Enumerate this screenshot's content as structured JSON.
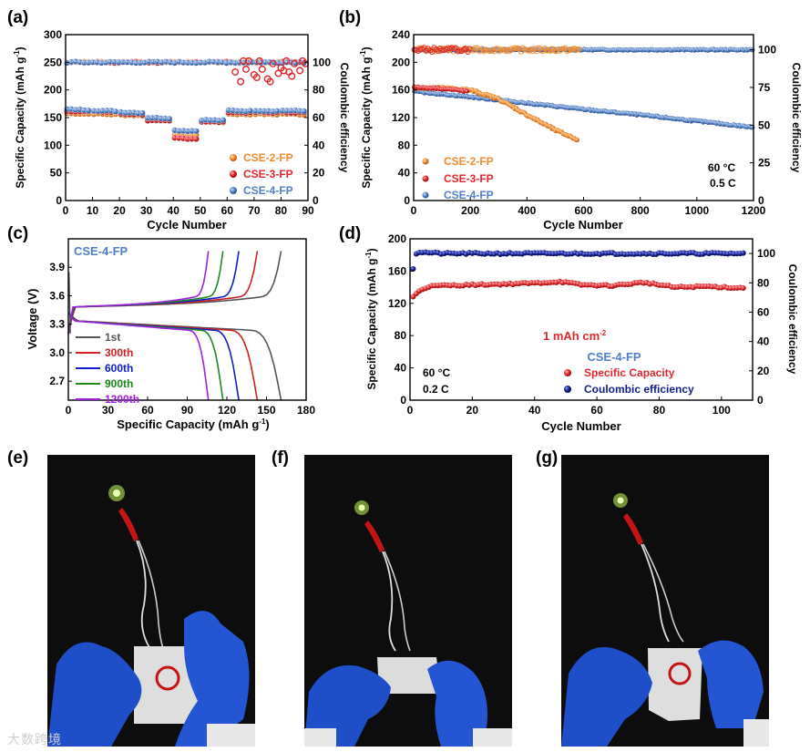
{
  "colors": {
    "orange": "#f08a2c",
    "red": "#e0262a",
    "blue": "#4f7fc4",
    "navy": "#14208c",
    "gray": "#555555",
    "darkred": "#d02020",
    "darkblue": "#1020c8",
    "green": "#1a8a1a",
    "purple": "#a020e0"
  },
  "panels": {
    "a": "(a)",
    "b": "(b)",
    "c": "(c)",
    "d": "(d)",
    "e": "(e)",
    "f": "(f)",
    "g": "(g)"
  },
  "watermark": "大数跨境",
  "chart_data": [
    {
      "id": "a",
      "type": "scatter",
      "title": "",
      "xlabel": "Cycle Number",
      "ylabel": "Specific Capacity (mAh g-1)",
      "ylabel_right": "Coulombic efficiency",
      "xlim": [
        0,
        90
      ],
      "ylim": [
        0,
        300
      ],
      "ylim_right": [
        0,
        120
      ],
      "xticks": [
        0,
        10,
        20,
        30,
        40,
        50,
        60,
        70,
        80,
        90
      ],
      "yticks": [
        0,
        50,
        100,
        150,
        200,
        250,
        300
      ],
      "yticks_right": [
        0,
        20,
        40,
        60,
        80,
        100
      ],
      "legend": [
        "CSE-2-FP",
        "CSE-3-FP",
        "CSE-4-FP"
      ],
      "legend_position": "lower-right",
      "series": [
        {
          "name": "CSE-2-FP capacity",
          "segments": [
            [
              0,
              10,
              158
            ],
            [
              10,
              20,
              157
            ],
            [
              20,
              30,
              155
            ],
            [
              30,
              40,
              146
            ],
            [
              40,
              50,
              120
            ],
            [
              50,
              60,
              143
            ],
            [
              60,
              70,
              157
            ],
            [
              70,
              80,
              157
            ],
            [
              80,
              90,
              157
            ]
          ]
        },
        {
          "name": "CSE-3-FP capacity",
          "segments": [
            [
              0,
              10,
              162
            ],
            [
              10,
              20,
              161
            ],
            [
              20,
              30,
              157
            ],
            [
              30,
              40,
              145
            ],
            [
              40,
              50,
              113
            ],
            [
              50,
              60,
              143
            ],
            [
              60,
              70,
              160
            ],
            [
              70,
              80,
              160
            ],
            [
              80,
              90,
              160
            ]
          ]
        },
        {
          "name": "CSE-4-FP capacity",
          "segments": [
            [
              0,
              10,
              165
            ],
            [
              10,
              20,
              163
            ],
            [
              20,
              30,
              160
            ],
            [
              30,
              40,
              150
            ],
            [
              40,
              50,
              127
            ],
            [
              50,
              60,
              146
            ],
            [
              60,
              70,
              163
            ],
            [
              70,
              80,
              163
            ],
            [
              80,
              90,
              163
            ]
          ]
        },
        {
          "name": "CE",
          "value": 100
        },
        {
          "name": "CSE-3-FP CE scatter",
          "x": [
            63,
            65,
            66,
            67,
            68,
            70,
            71,
            72,
            73,
            75,
            76,
            77,
            79,
            80,
            81,
            82,
            83,
            84,
            85,
            87,
            88,
            89
          ],
          "y": [
            93,
            86,
            101,
            95,
            101,
            91,
            89,
            101,
            95,
            88,
            86,
            99,
            92,
            96,
            94,
            101,
            93,
            90,
            99,
            94,
            101,
            99
          ]
        }
      ]
    },
    {
      "id": "b",
      "type": "scatter",
      "title": "",
      "xlabel": "Cycle Number",
      "ylabel": "Specific Capacity (mAh g-1)",
      "ylabel_right": "Coulombic efficiency",
      "xlim": [
        0,
        1200
      ],
      "ylim": [
        0,
        240
      ],
      "ylim_right": [
        0,
        110
      ],
      "xticks": [
        0,
        200,
        400,
        600,
        800,
        1000,
        1200
      ],
      "yticks": [
        0,
        40,
        80,
        120,
        160,
        200,
        240
      ],
      "yticks_right": [
        0,
        25,
        50,
        75,
        100
      ],
      "legend": [
        "CSE-2-FP",
        "CSE-3-FP",
        "CSE-4-FP"
      ],
      "legend_position": "lower-left",
      "annotations": [
        "60 °C",
        "0.5 C"
      ],
      "series": [
        {
          "name": "CSE-2-FP capacity",
          "x": [
            0,
            100,
            200,
            300,
            400,
            500,
            580
          ],
          "values": [
            163,
            163,
            160,
            147,
            124,
            102,
            88
          ]
        },
        {
          "name": "CSE-3-FP capacity",
          "x": [
            0,
            50,
            100,
            150,
            190
          ],
          "values": [
            164,
            163,
            162,
            160,
            158
          ]
        },
        {
          "name": "CSE-4-FP capacity",
          "x": [
            0,
            200,
            400,
            600,
            800,
            1000,
            1200
          ],
          "values": [
            158,
            150,
            141,
            132,
            124,
            115,
            106
          ]
        },
        {
          "name": "CE",
          "value": 100
        }
      ]
    },
    {
      "id": "c",
      "type": "line",
      "title": "CSE-4-FP",
      "xlabel": "Specific Capacity (mAh g-1)",
      "ylabel": "Voltage (V)",
      "xlim": [
        0,
        180
      ],
      "ylim": [
        2.5,
        4.2
      ],
      "xticks": [
        0,
        30,
        60,
        90,
        120,
        150,
        180
      ],
      "yticks": [
        2.7,
        3.0,
        3.3,
        3.6,
        3.9
      ],
      "legend": [
        "1st",
        "300th",
        "600th",
        "900th",
        "1200th"
      ],
      "legend_position": "lower-left",
      "series": [
        {
          "name": "1st",
          "capacity": 161
        },
        {
          "name": "300th",
          "capacity": 143
        },
        {
          "name": "600th",
          "capacity": 129
        },
        {
          "name": "900th",
          "capacity": 117
        },
        {
          "name": "1200th",
          "capacity": 106
        }
      ]
    },
    {
      "id": "d",
      "type": "scatter",
      "title": "CSE-4-FP",
      "xlabel": "Cycle Number",
      "ylabel": "Specific Capacity (mAh g-1)",
      "ylabel_right": "Coulombic efficiency",
      "xlim": [
        0,
        110
      ],
      "ylim": [
        0,
        200
      ],
      "ylim_right": [
        0,
        110
      ],
      "xticks": [
        0,
        20,
        40,
        60,
        80,
        100
      ],
      "yticks": [
        0,
        40,
        80,
        120,
        160,
        200
      ],
      "yticks_right": [
        0,
        20,
        40,
        60,
        80,
        100
      ],
      "legend": [
        "Specific Capacity",
        "Coulombic efficiency"
      ],
      "legend_position": "lower-right",
      "annotations": [
        "1 mAh cm-2",
        "60 °C",
        "0.2 C"
      ],
      "series": [
        {
          "name": "Specific Capacity",
          "x": [
            1,
            3,
            6,
            10,
            20,
            30,
            40,
            48,
            55,
            65,
            75,
            85,
            95,
            107
          ],
          "values": [
            128,
            136,
            141,
            142,
            143,
            144,
            145,
            147,
            143,
            142,
            146,
            140,
            141,
            139
          ]
        },
        {
          "name": "Coulombic efficiency",
          "x": [
            1,
            2,
            3,
            10,
            50,
            100,
            107
          ],
          "values": [
            90,
            100,
            101,
            100,
            100,
            100,
            100
          ]
        }
      ]
    }
  ]
}
